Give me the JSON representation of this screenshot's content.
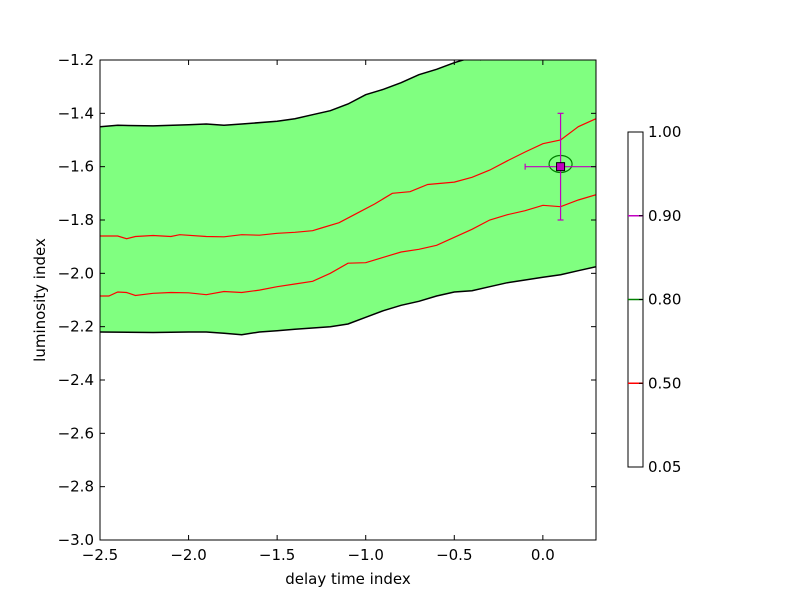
{
  "chart_data": {
    "type": "contour",
    "xlabel": "delay time index",
    "ylabel": "luminosity index",
    "xlim": [
      -2.5,
      0.3
    ],
    "ylim": [
      -3.0,
      -1.2
    ],
    "xticks": [
      -2.5,
      -2.0,
      -1.5,
      -1.0,
      -0.5,
      0.0
    ],
    "xtick_labels": [
      "−2.5",
      "−2.0",
      "−1.5",
      "−1.0",
      "−0.5",
      "0.0"
    ],
    "yticks": [
      -3.0,
      -2.8,
      -2.6,
      -2.4,
      -2.2,
      -2.0,
      -1.8,
      -1.6,
      -1.4,
      -1.2
    ],
    "ytick_labels": [
      "−3.0",
      "−2.8",
      "−2.6",
      "−2.4",
      "−2.2",
      "−2.0",
      "−1.8",
      "−1.6",
      "−1.4",
      "−1.2"
    ],
    "fill_color": "#80ff80",
    "band": {
      "upper": [
        [
          -2.5,
          -1.45
        ],
        [
          -2.4,
          -1.445
        ],
        [
          -2.2,
          -1.447
        ],
        [
          -2.0,
          -1.443
        ],
        [
          -1.9,
          -1.44
        ],
        [
          -1.8,
          -1.445
        ],
        [
          -1.7,
          -1.44
        ],
        [
          -1.5,
          -1.43
        ],
        [
          -1.4,
          -1.42
        ],
        [
          -1.3,
          -1.405
        ],
        [
          -1.2,
          -1.39
        ],
        [
          -1.1,
          -1.365
        ],
        [
          -1.0,
          -1.33
        ],
        [
          -0.9,
          -1.31
        ],
        [
          -0.8,
          -1.285
        ],
        [
          -0.7,
          -1.255
        ],
        [
          -0.6,
          -1.235
        ],
        [
          -0.5,
          -1.21
        ],
        [
          -0.4,
          -1.19
        ],
        [
          -0.35,
          -1.2
        ]
      ],
      "lower": [
        [
          -2.5,
          -2.22
        ],
        [
          -2.2,
          -2.222
        ],
        [
          -2.0,
          -2.22
        ],
        [
          -1.9,
          -2.22
        ],
        [
          -1.8,
          -2.225
        ],
        [
          -1.7,
          -2.23
        ],
        [
          -1.6,
          -2.22
        ],
        [
          -1.5,
          -2.215
        ],
        [
          -1.4,
          -2.21
        ],
        [
          -1.3,
          -2.205
        ],
        [
          -1.2,
          -2.2
        ],
        [
          -1.1,
          -2.19
        ],
        [
          -1.0,
          -2.165
        ],
        [
          -0.9,
          -2.14
        ],
        [
          -0.8,
          -2.12
        ],
        [
          -0.7,
          -2.105
        ],
        [
          -0.6,
          -2.085
        ],
        [
          -0.5,
          -2.07
        ],
        [
          -0.4,
          -2.065
        ],
        [
          -0.3,
          -2.05
        ],
        [
          -0.2,
          -2.035
        ],
        [
          -0.1,
          -2.025
        ],
        [
          0.0,
          -2.015
        ],
        [
          0.1,
          -2.005
        ],
        [
          0.2,
          -1.99
        ],
        [
          0.3,
          -1.975
        ]
      ]
    },
    "lines_050": [
      [
        [
          -2.5,
          -1.86
        ],
        [
          -2.4,
          -1.86
        ],
        [
          -2.35,
          -1.87
        ],
        [
          -2.3,
          -1.862
        ],
        [
          -2.2,
          -1.858
        ],
        [
          -2.1,
          -1.862
        ],
        [
          -2.05,
          -1.855
        ],
        [
          -1.9,
          -1.862
        ],
        [
          -1.8,
          -1.863
        ],
        [
          -1.7,
          -1.855
        ],
        [
          -1.6,
          -1.857
        ],
        [
          -1.5,
          -1.85
        ],
        [
          -1.4,
          -1.846
        ],
        [
          -1.3,
          -1.84
        ],
        [
          -1.25,
          -1.83
        ],
        [
          -1.15,
          -1.81
        ],
        [
          -1.05,
          -1.775
        ],
        [
          -0.95,
          -1.74
        ],
        [
          -0.9,
          -1.72
        ],
        [
          -0.85,
          -1.7
        ],
        [
          -0.75,
          -1.694
        ],
        [
          -0.65,
          -1.667
        ],
        [
          -0.5,
          -1.658
        ],
        [
          -0.4,
          -1.64
        ],
        [
          -0.3,
          -1.613
        ],
        [
          -0.2,
          -1.578
        ],
        [
          -0.1,
          -1.545
        ],
        [
          0.0,
          -1.514
        ],
        [
          0.1,
          -1.5
        ],
        [
          0.2,
          -1.45
        ],
        [
          0.3,
          -1.42
        ]
      ],
      [
        [
          -2.5,
          -2.085
        ],
        [
          -2.45,
          -2.085
        ],
        [
          -2.4,
          -2.07
        ],
        [
          -2.35,
          -2.072
        ],
        [
          -2.3,
          -2.083
        ],
        [
          -2.2,
          -2.075
        ],
        [
          -2.1,
          -2.072
        ],
        [
          -2.0,
          -2.073
        ],
        [
          -1.9,
          -2.08
        ],
        [
          -1.8,
          -2.068
        ],
        [
          -1.7,
          -2.072
        ],
        [
          -1.6,
          -2.063
        ],
        [
          -1.5,
          -2.05
        ],
        [
          -1.4,
          -2.04
        ],
        [
          -1.3,
          -2.03
        ],
        [
          -1.2,
          -2.0
        ],
        [
          -1.1,
          -1.962
        ],
        [
          -1.0,
          -1.96
        ],
        [
          -0.9,
          -1.94
        ],
        [
          -0.8,
          -1.92
        ],
        [
          -0.7,
          -1.91
        ],
        [
          -0.6,
          -1.895
        ],
        [
          -0.5,
          -1.865
        ],
        [
          -0.4,
          -1.835
        ],
        [
          -0.3,
          -1.8
        ],
        [
          -0.2,
          -1.78
        ],
        [
          -0.1,
          -1.765
        ],
        [
          0.0,
          -1.745
        ],
        [
          0.1,
          -1.75
        ],
        [
          0.2,
          -1.725
        ],
        [
          0.3,
          -1.705
        ]
      ]
    ],
    "point": {
      "x": 0.1,
      "y": -1.6,
      "xerr": 0.2,
      "yerr": 0.2,
      "marker_color": "#c000c0",
      "errorbar_color": "#c000c0"
    },
    "small_contour_080": {
      "cx": 0.1,
      "cy": -1.59,
      "rx": 0.065,
      "ry": 0.032,
      "color": "#008000"
    },
    "colorbar": {
      "tick_labels": [
        "1.00",
        "0.90",
        "0.80",
        "0.50",
        "0.05"
      ],
      "levels": [
        {
          "label": "0.90",
          "color": "#c000c0"
        },
        {
          "label": "0.80",
          "color": "#008000"
        },
        {
          "label": "0.50",
          "color": "#ff0000"
        }
      ]
    }
  }
}
